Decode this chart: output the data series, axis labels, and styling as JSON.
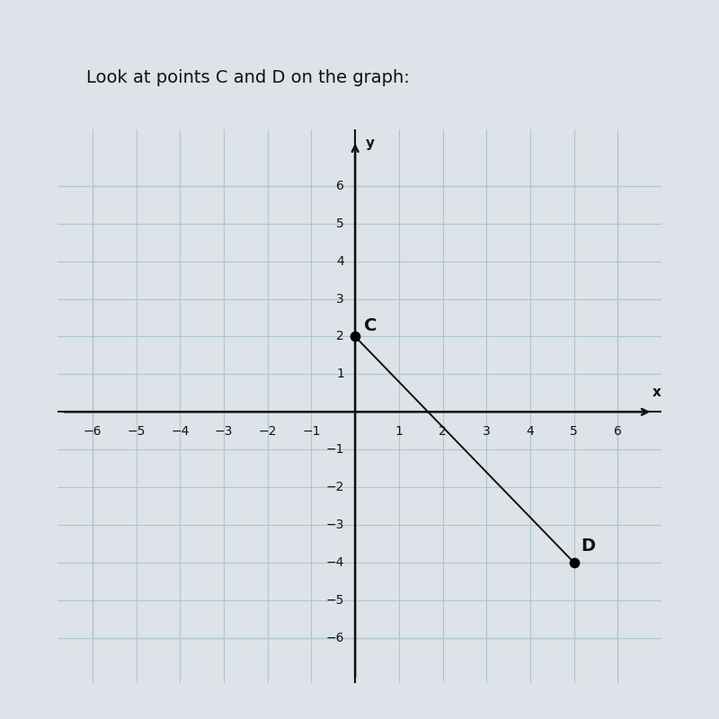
{
  "title": "Look at points C and D on the graph:",
  "title_fontsize": 14,
  "point_C": [
    0,
    2
  ],
  "point_D": [
    5,
    -4
  ],
  "xlim": [
    -6.8,
    7.0
  ],
  "ylim": [
    -7.2,
    7.5
  ],
  "xticks": [
    -6,
    -5,
    -4,
    -3,
    -2,
    -1,
    1,
    2,
    3,
    4,
    5,
    6
  ],
  "yticks": [
    -6,
    -5,
    -4,
    -3,
    -2,
    -1,
    1,
    2,
    3,
    4,
    5,
    6
  ],
  "grid_color": "#aec6cf",
  "axis_color": "#111111",
  "background_color": "#dde3e8",
  "plot_bg_color": "#dde3e8",
  "point_color": "#000000",
  "line_color": "#111111",
  "label_C": "C",
  "label_D": "D",
  "point_size": 55,
  "line_width": 1.4,
  "tick_fontsize": 10,
  "border_color": "#aec6cf"
}
